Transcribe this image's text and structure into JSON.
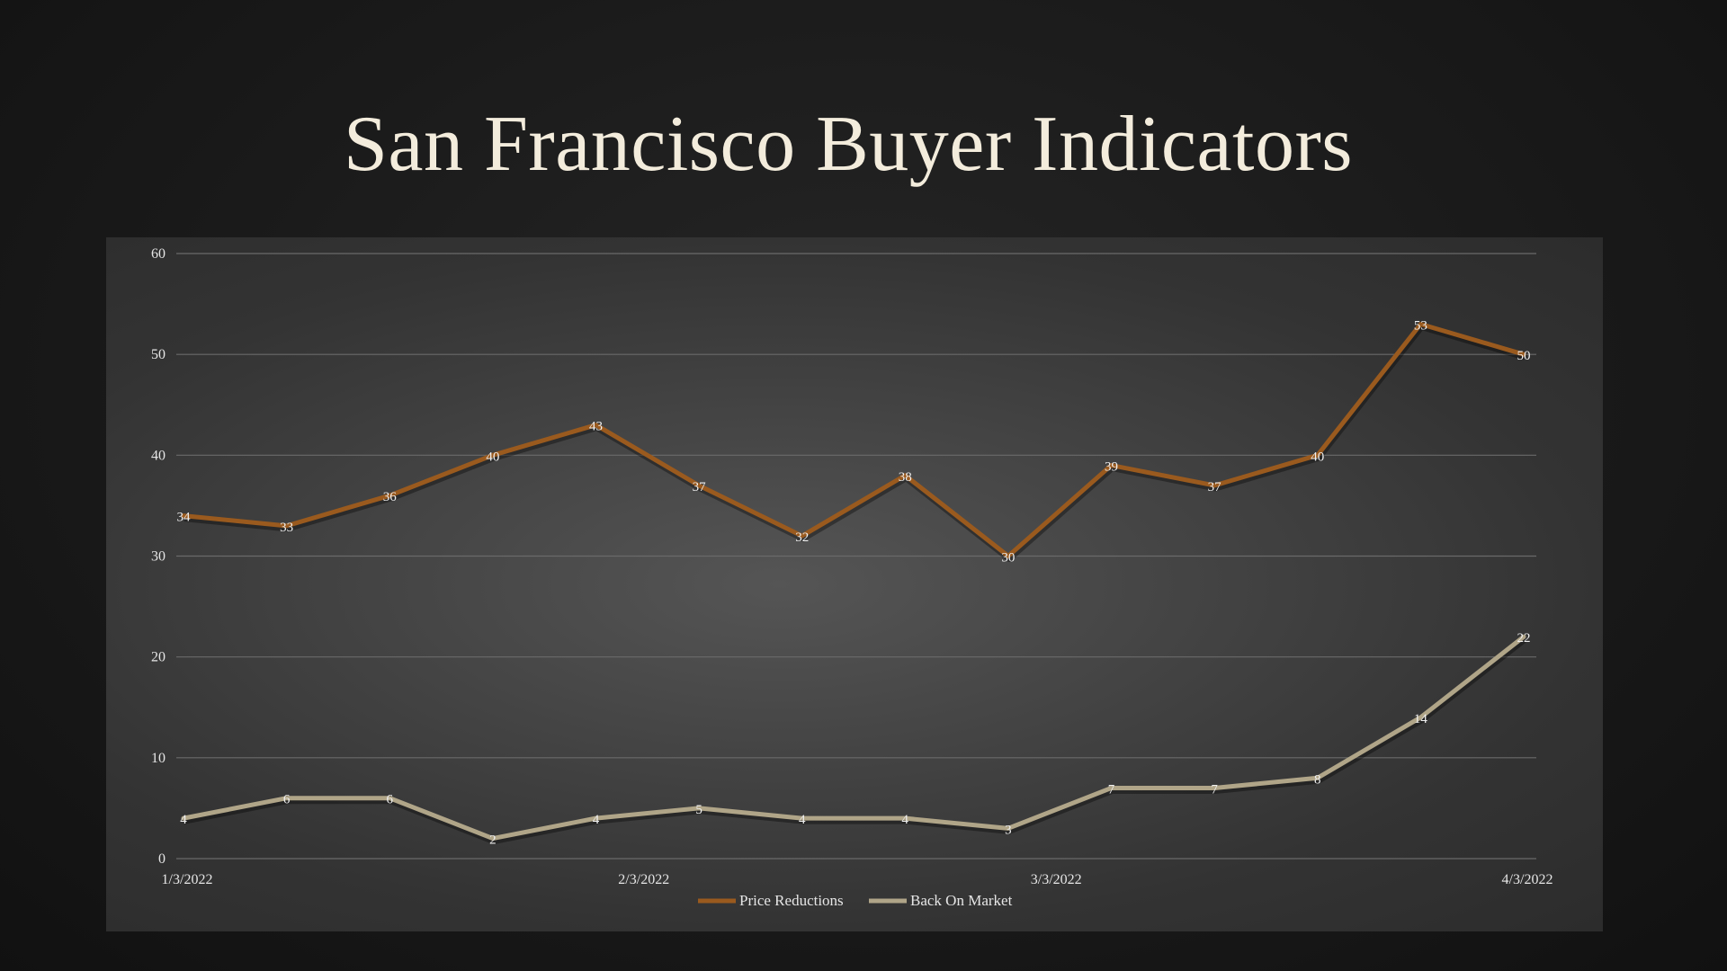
{
  "slide": {
    "title": "San Francisco Buyer Indicators"
  },
  "chart_data": {
    "type": "line",
    "title": "",
    "xlabel": "",
    "ylabel": "",
    "ylim": [
      0,
      60
    ],
    "yticks": [
      0,
      10,
      20,
      30,
      40,
      50,
      60
    ],
    "x_tick_labels": [
      {
        "index": 0,
        "label": "1/3/2022"
      },
      {
        "index": 4.43,
        "label": "2/3/2022"
      },
      {
        "index": 8.43,
        "label": "3/3/2022"
      },
      {
        "index": 13,
        "label": "4/3/2022"
      }
    ],
    "n_points": 14,
    "grid": true,
    "legend": "bottom",
    "series": [
      {
        "name": "Price Reductions",
        "color": "#9a5a1e",
        "values": [
          34,
          33,
          36,
          40,
          43,
          37,
          32,
          38,
          30,
          39,
          37,
          40,
          53,
          50
        ]
      },
      {
        "name": "Back On Market",
        "color": "#b0a588",
        "values": [
          4,
          6,
          6,
          2,
          4,
          5,
          4,
          4,
          3,
          7,
          7,
          8,
          14,
          22
        ]
      }
    ]
  }
}
